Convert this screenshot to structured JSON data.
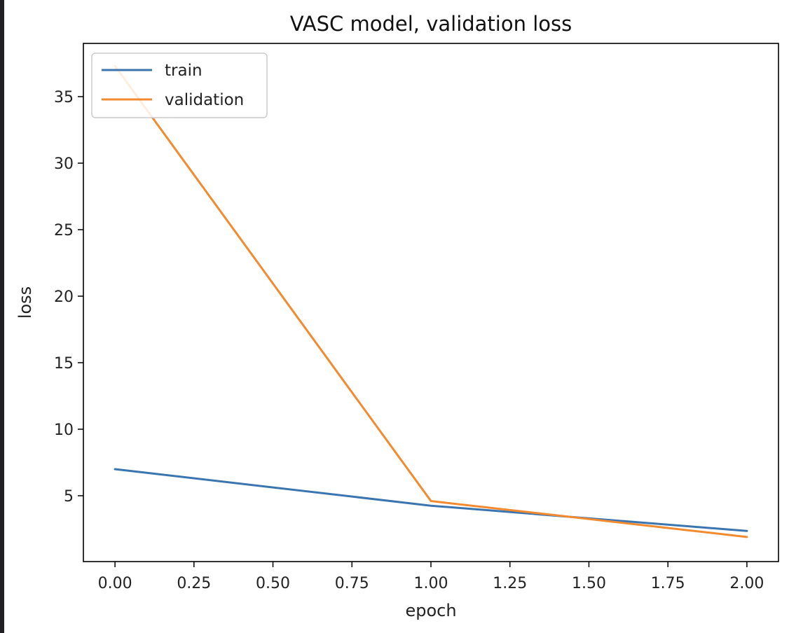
{
  "chart_data": {
    "type": "line",
    "title": "VASC model, validation loss",
    "xlabel": "epoch",
    "ylabel": "loss",
    "x": [
      0,
      1,
      2
    ],
    "xlim": [
      -0.1,
      2.1
    ],
    "ylim": [
      0.05,
      39.0
    ],
    "xticks": [
      "0.00",
      "0.25",
      "0.50",
      "0.75",
      "1.00",
      "1.25",
      "1.50",
      "1.75",
      "2.00"
    ],
    "xtick_values": [
      0,
      0.25,
      0.5,
      0.75,
      1.0,
      1.25,
      1.5,
      1.75,
      2.0
    ],
    "yticks": [
      "5",
      "10",
      "15",
      "20",
      "25",
      "30",
      "35"
    ],
    "ytick_values": [
      5,
      10,
      15,
      20,
      25,
      30,
      35
    ],
    "grid": false,
    "legend_position": "top-left",
    "series": [
      {
        "name": "train",
        "values": [
          7.0,
          4.25,
          2.35
        ],
        "color": "#3a75b0"
      },
      {
        "name": "validation",
        "values": [
          37.3,
          4.6,
          1.9
        ],
        "color": "#f28a30"
      }
    ]
  }
}
